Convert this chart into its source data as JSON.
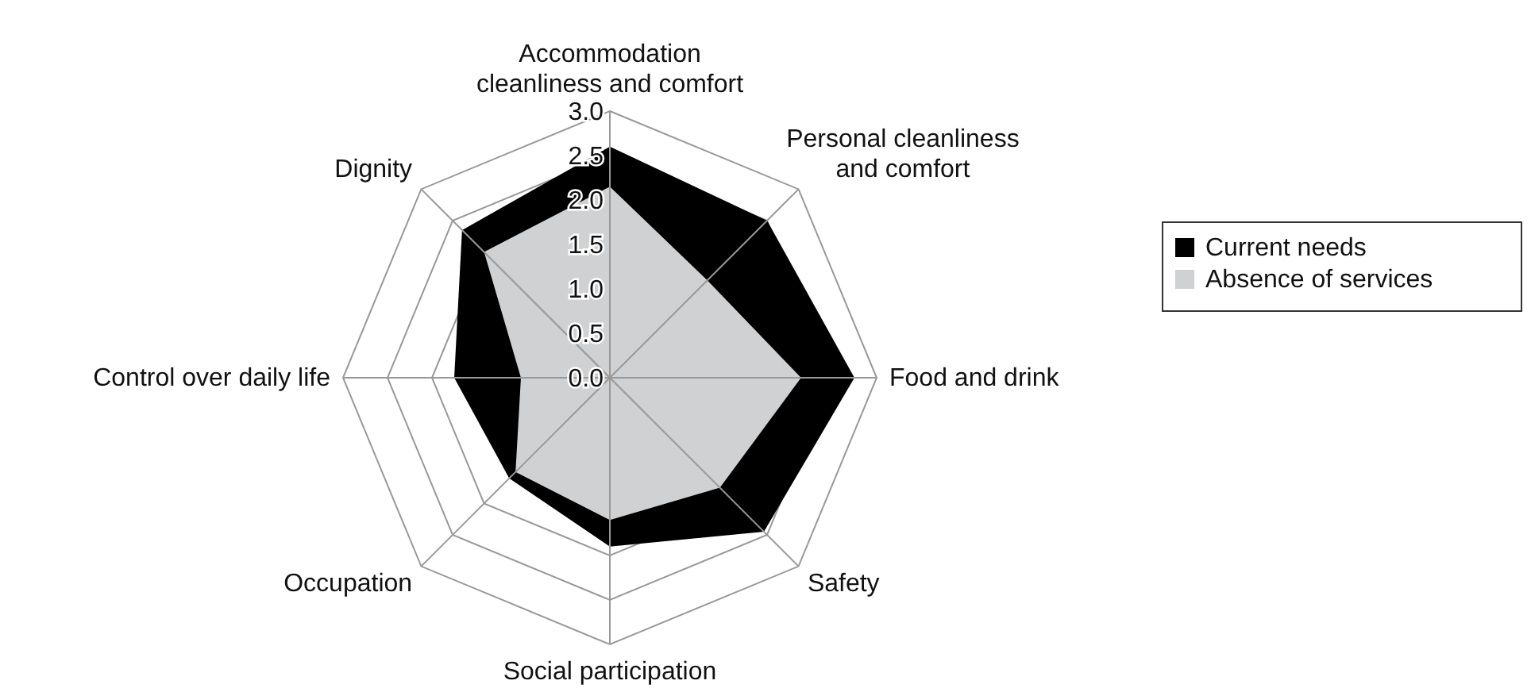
{
  "chart_data": {
    "type": "radar",
    "categories": [
      "Accommodation cleanliness and comfort",
      "Personal cleanliness and comfort",
      "Food and drink",
      "Safety",
      "Social participation",
      "Occupation",
      "Control over daily life",
      "Dignity"
    ],
    "series": [
      {
        "name": "Current needs",
        "color": "#000000",
        "values": [
          2.6,
          2.5,
          2.75,
          2.45,
          1.9,
          1.6,
          1.75,
          2.35
        ]
      },
      {
        "name": "Absence of services",
        "color": "#d0d1d3",
        "values": [
          2.15,
          1.55,
          2.15,
          1.75,
          1.6,
          1.5,
          1.0,
          2.0
        ]
      }
    ],
    "ylim": [
      0,
      3
    ],
    "yticks": [
      {
        "value": 0,
        "label": "0.0"
      },
      {
        "value": 0.5,
        "label": "0.5"
      },
      {
        "value": 1,
        "label": "1.0"
      },
      {
        "value": 1.5,
        "label": "1.5"
      },
      {
        "value": 2,
        "label": "2.0"
      },
      {
        "value": 2.5,
        "label": "2.5"
      },
      {
        "value": 3,
        "label": "3.0"
      }
    ],
    "grid": true,
    "legend": "right"
  }
}
